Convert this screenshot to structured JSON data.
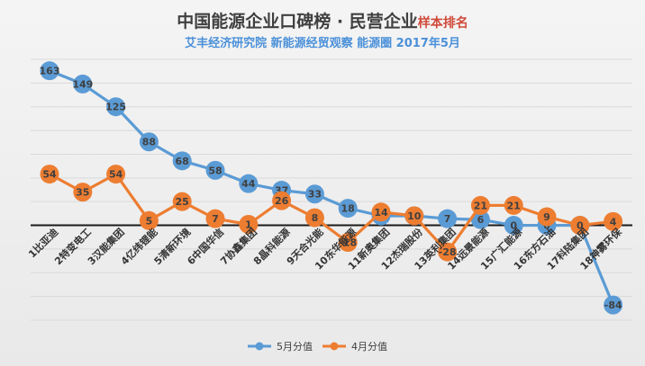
{
  "chart_data": {
    "type": "line",
    "title": "中国能源企业口碑榜 · 民营企业",
    "title_suffix": "样本排名",
    "subtitle": "艾丰经济研究院   新能源经贸观察   能源圈   2017年5月",
    "categories": [
      "1比亚迪",
      "2特变电工",
      "3汉能集团",
      "4亿纬锂能",
      "5清新环境",
      "6中国华信",
      "7协鑫集团",
      "8晶科能源",
      "9天合光能",
      "10东华能源",
      "11新奥集团",
      "12杰瑞股份",
      "13英利集团",
      "14远景能源",
      "15广汇能源",
      "16东方石油",
      "17科陆集团",
      "18神雾环保"
    ],
    "series": [
      {
        "name": "5月分值",
        "color": "#5b9bd5",
        "values": [
          163,
          149,
          125,
          88,
          68,
          58,
          44,
          37,
          33,
          18,
          10,
          10,
          7,
          6,
          0,
          0,
          0,
          -84
        ]
      },
      {
        "name": "4月分值",
        "color": "#ed7d31",
        "values": [
          54,
          35,
          54,
          5,
          25,
          7,
          1,
          26,
          8,
          -18,
          14,
          10,
          -28,
          21,
          21,
          9,
          0,
          4
        ]
      }
    ],
    "data_labels": {
      "s0": [
        "163",
        "149",
        "125",
        "88",
        "68",
        "58",
        "44",
        "37",
        "33",
        "18",
        "10",
        "10",
        "7",
        "6",
        "0",
        "0",
        "0",
        "-84"
      ],
      "s1": [
        "54",
        "35",
        "54",
        "5",
        "25",
        "7",
        "1",
        "26",
        "8",
        "-18",
        "14",
        "10",
        "-28",
        "21",
        "21",
        "9",
        "0",
        "4"
      ]
    },
    "ylim": [
      -100,
      175
    ],
    "grid": true,
    "legend_position": "bottom"
  }
}
